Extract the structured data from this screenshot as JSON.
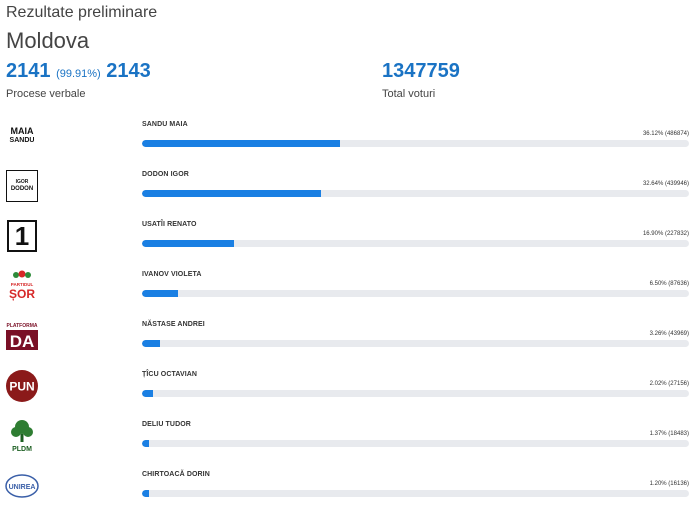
{
  "header": {
    "title": "Rezultate preliminare",
    "region": "Moldova"
  },
  "stats": {
    "processed": "2141",
    "processed_pct": "(99.91%)",
    "total_reports": "2143",
    "reports_label": "Procese verbale",
    "total_votes": "1347759",
    "votes_label": "Total voturi"
  },
  "colors": {
    "accent": "#1a73c4",
    "bar": "#1a7fe3",
    "track": "#e8eaee"
  },
  "candidates": [
    {
      "name": "SANDU MAIA",
      "result": "36.12% (486874)",
      "share": 36.12,
      "logo_text": "MAIA SANDU",
      "icon": "maia-sandu-logo"
    },
    {
      "name": "DODON IGOR",
      "result": "32.64% (439946)",
      "share": 32.64,
      "logo_text": "IGOR DODON",
      "icon": "igor-dodon-logo"
    },
    {
      "name": "USATÎI RENATO",
      "result": "16.90% (227832)",
      "share": 16.9,
      "logo_text": "1",
      "icon": "nostra-one-logo"
    },
    {
      "name": "IVANOV VIOLETA",
      "result": "6.50% (87636)",
      "share": 6.5,
      "logo_text": "ȘOR",
      "logo_small": "PARTIDUL",
      "icon": "partidul-sor-logo"
    },
    {
      "name": "NĂSTASE ANDREI",
      "result": "3.26% (43969)",
      "share": 3.26,
      "logo_text": "DA",
      "logo_small": "PLATFORMA",
      "icon": "platforma-da-logo"
    },
    {
      "name": "ȚÎCU OCTAVIAN",
      "result": "2.02% (27156)",
      "share": 2.02,
      "logo_text": "PUN",
      "icon": "pun-logo"
    },
    {
      "name": "DELIU TUDOR",
      "result": "1.37% (18483)",
      "share": 1.37,
      "logo_text": "PLDM",
      "icon": "pldm-tree-logo"
    },
    {
      "name": "CHIRTOACĂ DORIN",
      "result": "1.20% (16136)",
      "share": 1.2,
      "logo_text": "UNIREA",
      "icon": "unirea-logo"
    }
  ]
}
